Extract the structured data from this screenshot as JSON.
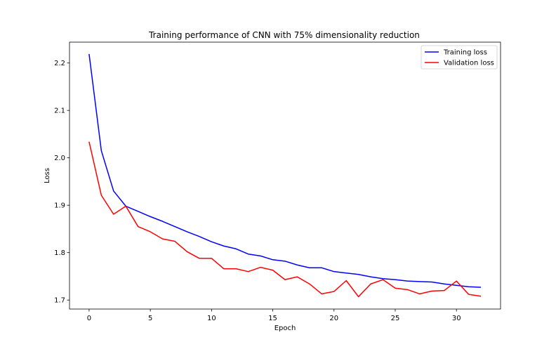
{
  "chart_data": {
    "type": "line",
    "title": "Training performance of CNN with 75% dimensionality reduction",
    "xlabel": "Epoch",
    "ylabel": "Loss",
    "xlim": [
      -1.6,
      33.6
    ],
    "ylim": [
      1.681,
      2.244
    ],
    "xticks": [
      0,
      5,
      10,
      15,
      20,
      25,
      30
    ],
    "yticks": [
      1.7,
      1.8,
      1.9,
      2.0,
      2.1,
      2.2
    ],
    "grid": false,
    "legend": "top-right",
    "x": [
      0,
      1,
      2,
      3,
      4,
      5,
      6,
      7,
      8,
      9,
      10,
      11,
      12,
      13,
      14,
      15,
      16,
      17,
      18,
      19,
      20,
      21,
      22,
      23,
      24,
      25,
      26,
      27,
      28,
      29,
      30,
      31,
      32
    ],
    "series": [
      {
        "name": "Training loss",
        "color": "#0000ff",
        "values": [
          2.219,
          2.015,
          1.93,
          1.898,
          1.887,
          1.876,
          1.866,
          1.855,
          1.844,
          1.834,
          1.823,
          1.814,
          1.808,
          1.797,
          1.793,
          1.785,
          1.782,
          1.774,
          1.768,
          1.768,
          1.76,
          1.757,
          1.754,
          1.749,
          1.745,
          1.743,
          1.74,
          1.739,
          1.738,
          1.734,
          1.731,
          1.728,
          1.727
        ]
      },
      {
        "name": "Validation loss",
        "color": "#ff0000",
        "values": [
          2.034,
          1.921,
          1.881,
          1.898,
          1.855,
          1.844,
          1.829,
          1.824,
          1.802,
          1.788,
          1.788,
          1.766,
          1.766,
          1.76,
          1.769,
          1.763,
          1.743,
          1.749,
          1.734,
          1.713,
          1.718,
          1.741,
          1.707,
          1.734,
          1.743,
          1.725,
          1.722,
          1.713,
          1.719,
          1.72,
          1.74,
          1.712,
          1.708
        ]
      }
    ]
  }
}
